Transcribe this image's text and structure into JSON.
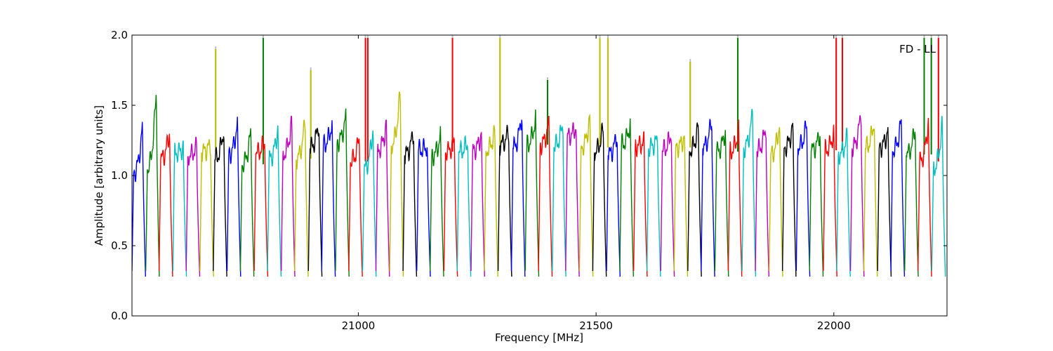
{
  "chart_data": {
    "type": "line",
    "title": "",
    "xlabel": "Frequency [MHz]",
    "ylabel": "Amplitude [arbitrary units]",
    "annotation": "FD - LL",
    "annotation_position": "top-right",
    "xlim": [
      20524,
      22238
    ],
    "ylim": [
      0.0,
      2.0
    ],
    "x_ticks": [
      21000,
      21500,
      22000
    ],
    "y_ticks": [
      0.0,
      0.5,
      1.0,
      1.5,
      2.0
    ],
    "x_tick_labels": [
      "21000",
      "21500",
      "22000"
    ],
    "y_tick_labels": [
      "0.0",
      "0.5",
      "1.0",
      "1.5",
      "2.0"
    ],
    "grid": false,
    "legend": "none",
    "color_cycle": [
      "#0000ff",
      "#008000",
      "#ff0000",
      "#00bfbf",
      "#bf00bf",
      "#bfbf00",
      "#000000"
    ],
    "reference_color": "#c0c0c0",
    "band_width_mhz": 28.5,
    "bands": [
      {
        "start": 20524,
        "mid": 1.02,
        "peak": 1.36,
        "spikes": []
      },
      {
        "start": 20553,
        "mid": 1.05,
        "peak": 1.61,
        "spikes": []
      },
      {
        "start": 20581,
        "mid": 1.12,
        "peak": 1.32,
        "spikes": []
      },
      {
        "start": 20610,
        "mid": 1.16,
        "peak": 1.2,
        "spikes": []
      },
      {
        "start": 20638,
        "mid": 1.14,
        "peak": 1.21,
        "spikes": []
      },
      {
        "start": 20667,
        "mid": 1.17,
        "peak": 1.22,
        "spikes": [
          {
            "x": 20700,
            "y": 1.92
          }
        ]
      },
      {
        "start": 20695,
        "mid": 1.12,
        "peak": 1.34,
        "spikes": []
      },
      {
        "start": 20724,
        "mid": 1.15,
        "peak": 1.39,
        "spikes": []
      },
      {
        "start": 20752,
        "mid": 1.08,
        "peak": 1.32,
        "spikes": [
          {
            "x": 20800,
            "y": 2.0
          }
        ]
      },
      {
        "start": 20781,
        "mid": 1.16,
        "peak": 1.25,
        "spikes": []
      },
      {
        "start": 20809,
        "mid": 1.12,
        "peak": 1.35,
        "spikes": []
      },
      {
        "start": 20838,
        "mid": 1.15,
        "peak": 1.39,
        "spikes": []
      },
      {
        "start": 20866,
        "mid": 1.12,
        "peak": 1.4,
        "spikes": [
          {
            "x": 20900,
            "y": 1.77
          }
        ]
      },
      {
        "start": 20895,
        "mid": 1.2,
        "peak": 1.38,
        "spikes": []
      },
      {
        "start": 20923,
        "mid": 1.22,
        "peak": 1.38,
        "spikes": []
      },
      {
        "start": 20952,
        "mid": 1.24,
        "peak": 1.43,
        "spikes": []
      },
      {
        "start": 20980,
        "mid": 1.1,
        "peak": 1.28,
        "spikes": [
          {
            "x": 21015,
            "y": 2.0
          },
          {
            "x": 21020,
            "y": 2.0
          }
        ]
      },
      {
        "start": 21009,
        "mid": 1.05,
        "peak": 1.35,
        "spikes": []
      },
      {
        "start": 21037,
        "mid": 1.18,
        "peak": 1.37,
        "spikes": []
      },
      {
        "start": 21066,
        "mid": 1.22,
        "peak": 1.61,
        "spikes": []
      },
      {
        "start": 21094,
        "mid": 1.15,
        "peak": 1.32,
        "spikes": []
      },
      {
        "start": 21123,
        "mid": 1.18,
        "peak": 1.21,
        "spikes": []
      },
      {
        "start": 21151,
        "mid": 1.14,
        "peak": 1.29,
        "spikes": []
      },
      {
        "start": 21180,
        "mid": 1.17,
        "peak": 1.24,
        "spikes": [
          {
            "x": 21198,
            "y": 2.0
          }
        ]
      },
      {
        "start": 21208,
        "mid": 1.17,
        "peak": 1.24,
        "spikes": []
      },
      {
        "start": 21237,
        "mid": 1.18,
        "peak": 1.3,
        "spikes": []
      },
      {
        "start": 21265,
        "mid": 1.18,
        "peak": 1.32,
        "spikes": [
          {
            "x": 21298,
            "y": 2.0
          }
        ]
      },
      {
        "start": 21294,
        "mid": 1.22,
        "peak": 1.32,
        "spikes": []
      },
      {
        "start": 21322,
        "mid": 1.2,
        "peak": 1.45,
        "spikes": []
      },
      {
        "start": 21351,
        "mid": 1.22,
        "peak": 1.42,
        "spikes": [
          {
            "x": 21398,
            "y": 1.7
          }
        ]
      },
      {
        "start": 21379,
        "mid": 1.22,
        "peak": 1.38,
        "spikes": []
      },
      {
        "start": 21408,
        "mid": 1.21,
        "peak": 1.37,
        "spikes": []
      },
      {
        "start": 21436,
        "mid": 1.28,
        "peak": 1.35,
        "spikes": []
      },
      {
        "start": 21465,
        "mid": 1.2,
        "peak": 1.42,
        "spikes": [
          {
            "x": 21508,
            "y": 2.0
          },
          {
            "x": 21525,
            "y": 2.0
          }
        ]
      },
      {
        "start": 21493,
        "mid": 1.17,
        "peak": 1.35,
        "spikes": []
      },
      {
        "start": 21522,
        "mid": 1.15,
        "peak": 1.3,
        "spikes": []
      },
      {
        "start": 21550,
        "mid": 1.22,
        "peak": 1.38,
        "spikes": []
      },
      {
        "start": 21579,
        "mid": 1.21,
        "peak": 1.24,
        "spikes": []
      },
      {
        "start": 21607,
        "mid": 1.2,
        "peak": 1.26,
        "spikes": []
      },
      {
        "start": 21636,
        "mid": 1.18,
        "peak": 1.31,
        "spikes": []
      },
      {
        "start": 21664,
        "mid": 1.2,
        "peak": 1.28,
        "spikes": [
          {
            "x": 21698,
            "y": 1.83
          }
        ]
      },
      {
        "start": 21693,
        "mid": 1.18,
        "peak": 1.36,
        "spikes": []
      },
      {
        "start": 21721,
        "mid": 1.2,
        "peak": 1.41,
        "spikes": []
      },
      {
        "start": 21750,
        "mid": 1.17,
        "peak": 1.33,
        "spikes": [
          {
            "x": 21798,
            "y": 2.0
          }
        ]
      },
      {
        "start": 21778,
        "mid": 1.17,
        "peak": 1.33,
        "spikes": []
      },
      {
        "start": 21807,
        "mid": 1.2,
        "peak": 1.45,
        "spikes": []
      },
      {
        "start": 21835,
        "mid": 1.18,
        "peak": 1.35,
        "spikes": []
      },
      {
        "start": 21864,
        "mid": 1.15,
        "peak": 1.38,
        "spikes": []
      },
      {
        "start": 21892,
        "mid": 1.2,
        "peak": 1.36,
        "spikes": []
      },
      {
        "start": 21921,
        "mid": 1.2,
        "peak": 1.38,
        "spikes": []
      },
      {
        "start": 21949,
        "mid": 1.18,
        "peak": 1.31,
        "spikes": []
      },
      {
        "start": 21978,
        "mid": 1.18,
        "peak": 1.31,
        "spikes": [
          {
            "x": 22005,
            "y": 2.0
          },
          {
            "x": 22018,
            "y": 2.0
          }
        ]
      },
      {
        "start": 22006,
        "mid": 1.15,
        "peak": 1.28,
        "spikes": []
      },
      {
        "start": 22035,
        "mid": 1.2,
        "peak": 1.45,
        "spikes": []
      },
      {
        "start": 22063,
        "mid": 1.2,
        "peak": 1.4,
        "spikes": []
      },
      {
        "start": 22092,
        "mid": 1.2,
        "peak": 1.33,
        "spikes": []
      },
      {
        "start": 22120,
        "mid": 1.18,
        "peak": 1.4,
        "spikes": []
      },
      {
        "start": 22149,
        "mid": 1.15,
        "peak": 1.35,
        "spikes": [
          {
            "x": 22190,
            "y": 2.0
          },
          {
            "x": 22205,
            "y": 2.0
          }
        ]
      },
      {
        "start": 22177,
        "mid": 1.1,
        "peak": 1.4,
        "spikes": [
          {
            "x": 22220,
            "y": 2.0
          }
        ]
      },
      {
        "start": 22206,
        "mid": 1.05,
        "peak": 1.38,
        "spikes": []
      }
    ]
  }
}
